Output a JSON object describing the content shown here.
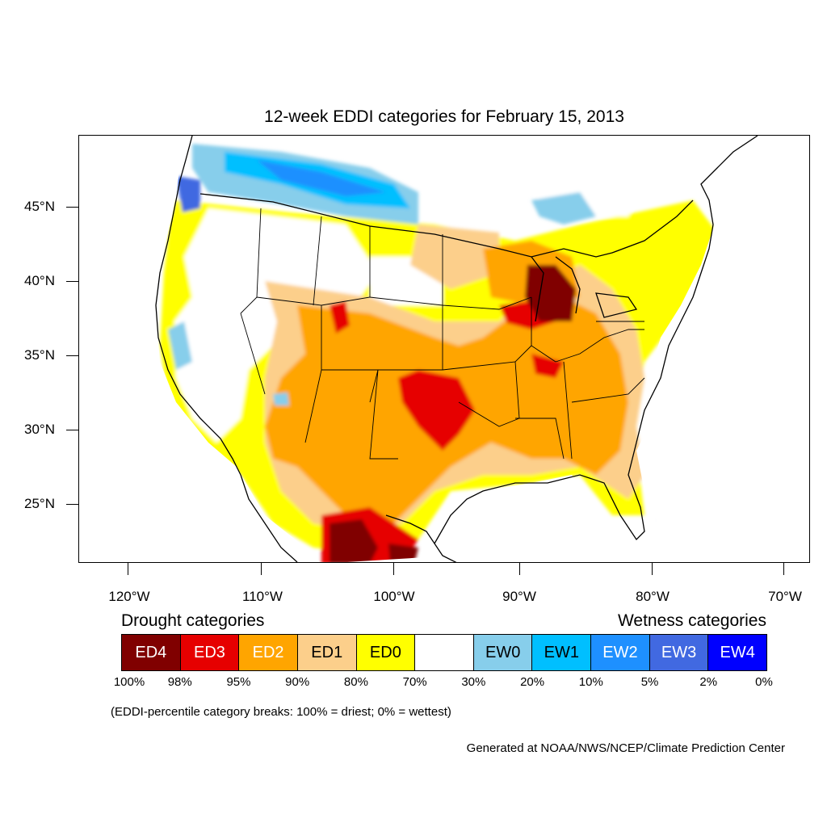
{
  "title": "12-week EDDI categories for February 15, 2013",
  "latitude_labels": [
    "45°N",
    "40°N",
    "35°N",
    "30°N",
    "25°N"
  ],
  "longitude_labels": [
    "120°W",
    "110°W",
    "100°W",
    "90°W",
    "80°W",
    "70°W"
  ],
  "legend": {
    "drought_heading": "Drought categories",
    "wetness_heading": "Wetness categories",
    "categories": [
      {
        "label": "ED4",
        "color": "#800000",
        "text_color": "#ffffff"
      },
      {
        "label": "ED3",
        "color": "#e60000",
        "text_color": "#ffffff"
      },
      {
        "label": "ED2",
        "color": "#ffa500",
        "text_color": "#ffffff"
      },
      {
        "label": "ED1",
        "color": "#fccf8b",
        "text_color": "#000000"
      },
      {
        "label": "ED0",
        "color": "#ffff00",
        "text_color": "#000000"
      },
      {
        "label": "",
        "color": "#ffffff",
        "text_color": "#000000"
      },
      {
        "label": "EW0",
        "color": "#87ceeb",
        "text_color": "#000000"
      },
      {
        "label": "EW1",
        "color": "#00bfff",
        "text_color": "#000000"
      },
      {
        "label": "EW2",
        "color": "#1e90ff",
        "text_color": "#ffffff"
      },
      {
        "label": "EW3",
        "color": "#4169e1",
        "text_color": "#ffffff"
      },
      {
        "label": "EW4",
        "color": "#0000ff",
        "text_color": "#ffffff"
      }
    ],
    "percentiles": [
      "100%",
      "98%",
      "95%",
      "90%",
      "80%",
      "70%",
      "30%",
      "20%",
      "10%",
      "5%",
      "2%",
      "0%"
    ]
  },
  "note": "(EDDI-percentile category breaks: 100% = driest; 0% = wettest)",
  "credit": "Generated at NOAA/NWS/NCEP/Climate Prediction Center"
}
